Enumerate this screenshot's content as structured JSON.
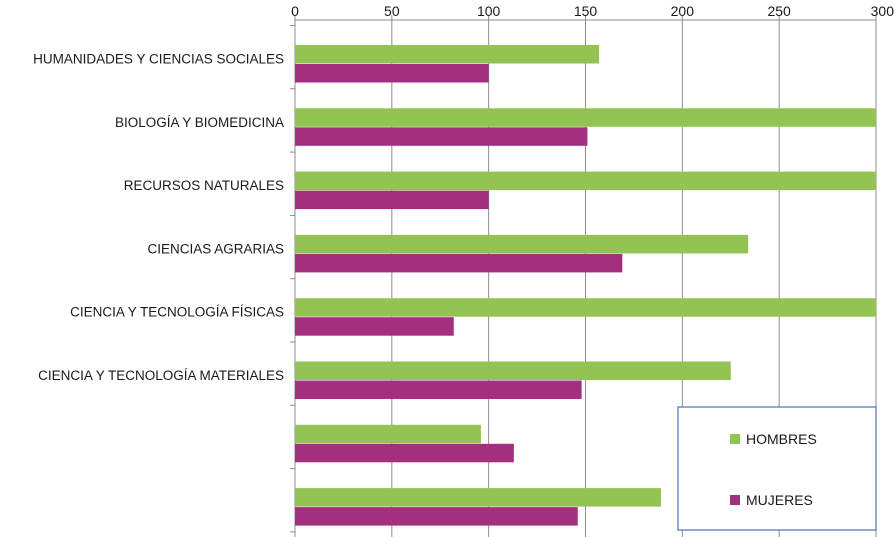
{
  "chart_data": {
    "type": "bar",
    "orientation": "horizontal",
    "categories": [
      "HUMANIDADES Y CIENCIAS SOCIALES",
      "BIOLOGÍA Y BIOMEDICINA",
      "RECURSOS NATURALES",
      "CIENCIAS AGRARIAS",
      "CIENCIA Y TECNOLOGÍA FÍSICAS",
      "CIENCIA Y TECNOLOGÍA MATERIALES",
      "",
      ""
    ],
    "series": [
      {
        "name": "HOMBRES",
        "color": "#92c353",
        "values": [
          157,
          300,
          300,
          234,
          300,
          225,
          96,
          189
        ]
      },
      {
        "name": "MUJERES",
        "color": "#a3307f",
        "values": [
          100,
          151,
          100,
          169,
          82,
          148,
          113,
          146
        ]
      }
    ],
    "xlim": [
      0,
      300
    ],
    "xticks": [
      0,
      50,
      100,
      150,
      200,
      250,
      300
    ],
    "x_axis_position": "top",
    "grid": true,
    "legend": {
      "position": "bottom-right",
      "border_color": "#4f81bd"
    },
    "title": "",
    "xlabel": "",
    "ylabel": ""
  }
}
